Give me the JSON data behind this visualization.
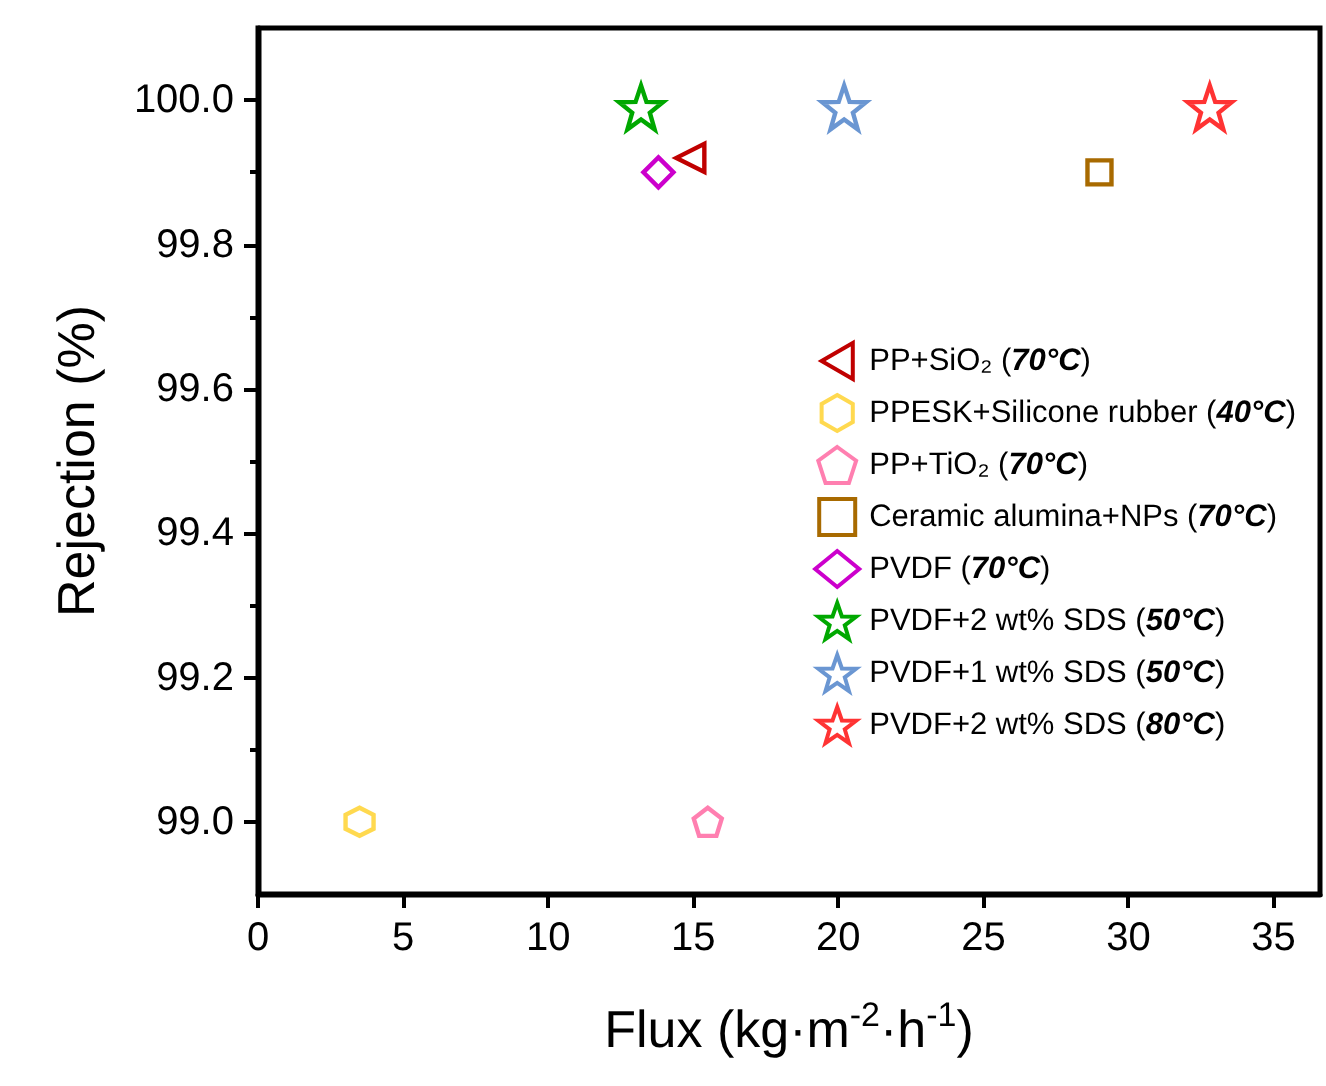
{
  "chart_data": {
    "type": "scatter",
    "xlabel": "Flux (kg·m$^{-2}$·h$^{-1}$)",
    "ylabel": "Rejection (%)",
    "xlim": [
      0,
      36.6
    ],
    "xticks": [
      0,
      5,
      10,
      15,
      20,
      25,
      30,
      35
    ],
    "ylim": [
      98.9,
      100.1
    ],
    "yticks": [
      {
        "value": 99,
        "label": "99.0"
      },
      {
        "value": 99.2,
        "label": "99.2"
      },
      {
        "value": 99.4,
        "label": "99.4"
      },
      {
        "value": 99.6,
        "label": "99.6"
      },
      {
        "value": 99.8,
        "label": "99.8"
      },
      {
        "value": 100,
        "label": "100.0"
      }
    ],
    "grid": false,
    "legend": "right",
    "series": [
      {
        "name": "PP+SiO₂ (70°C)",
        "color": "#c00000",
        "marker": "triangle-left",
        "x": [
          14.9
        ],
        "values": [
          99.92
        ]
      },
      {
        "name": "PPESK+Silicone rubber (40°C)",
        "color": "#ffd94f",
        "x": [
          3.5
        ],
        "values": [
          99.0
        ]
      },
      {
        "name": "PP+TiO₂ (70°C)",
        "color": "#ff7fb0",
        "x": [
          15.5
        ],
        "values": [
          99.0
        ]
      },
      {
        "name": "Ceramic alumina+NPs (70°C)",
        "color": "#a86a00",
        "marker": "square",
        "x": [
          29.0
        ],
        "values": [
          99.9
        ]
      },
      {
        "name": "PVDF (70°C)",
        "color": "#cc00cc",
        "marker": "diamond",
        "x": [
          13.8
        ],
        "values": [
          99.9
        ]
      },
      {
        "name": "PVDF+2 wt% SDS (50°C)",
        "color": "#00a800",
        "marker": "star",
        "x": [
          13.2
        ],
        "values": [
          99.99
        ]
      },
      {
        "name": "PVDF+1 wt% SDS (50°C)",
        "color": "#6a96d2",
        "marker": "star",
        "x": [
          20.2
        ],
        "values": [
          99.99
        ]
      },
      {
        "name": "PVDF+2 wt% SDS (80°C)",
        "color": "#ff3333",
        "marker": "star",
        "x": [
          32.8
        ],
        "values": [
          99.99
        ]
      }
    ]
  }
}
